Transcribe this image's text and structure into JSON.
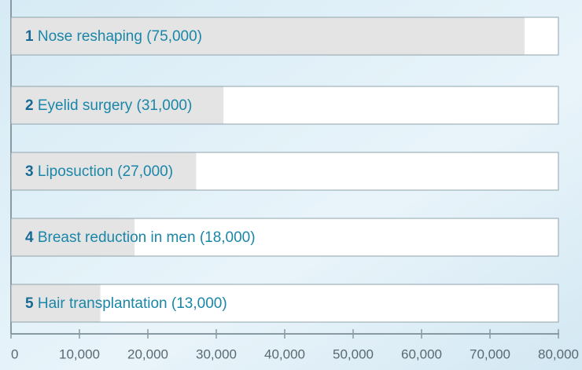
{
  "chart_data": {
    "type": "barh",
    "ranks": [
      1,
      2,
      3,
      4,
      5
    ],
    "categories": [
      "Nose reshaping",
      "Eyelid surgery",
      "Liposuction",
      "Breast reduction in men",
      "Hair transplantation"
    ],
    "values": [
      75000,
      31000,
      27000,
      18000,
      13000
    ],
    "value_labels": [
      "(75,000)",
      "(31,000)",
      "(27,000)",
      "(18,000)",
      "(13,000)"
    ],
    "color": "#e4e4e4",
    "xlim": [
      0,
      80000
    ],
    "xticks": [
      0,
      {
        "value": 10000,
        "label": "10,000"
      },
      {
        "value": 20000,
        "label": "20,000"
      },
      {
        "value": 30000,
        "label": "30,000"
      },
      {
        "value": 40000,
        "label": "40,000"
      },
      {
        "value": 50000,
        "label": "50,000"
      },
      {
        "value": 60000,
        "label": "60,000"
      },
      {
        "value": 70000,
        "label": "70,000"
      },
      {
        "value": 80000,
        "label": "80,000"
      }
    ]
  }
}
